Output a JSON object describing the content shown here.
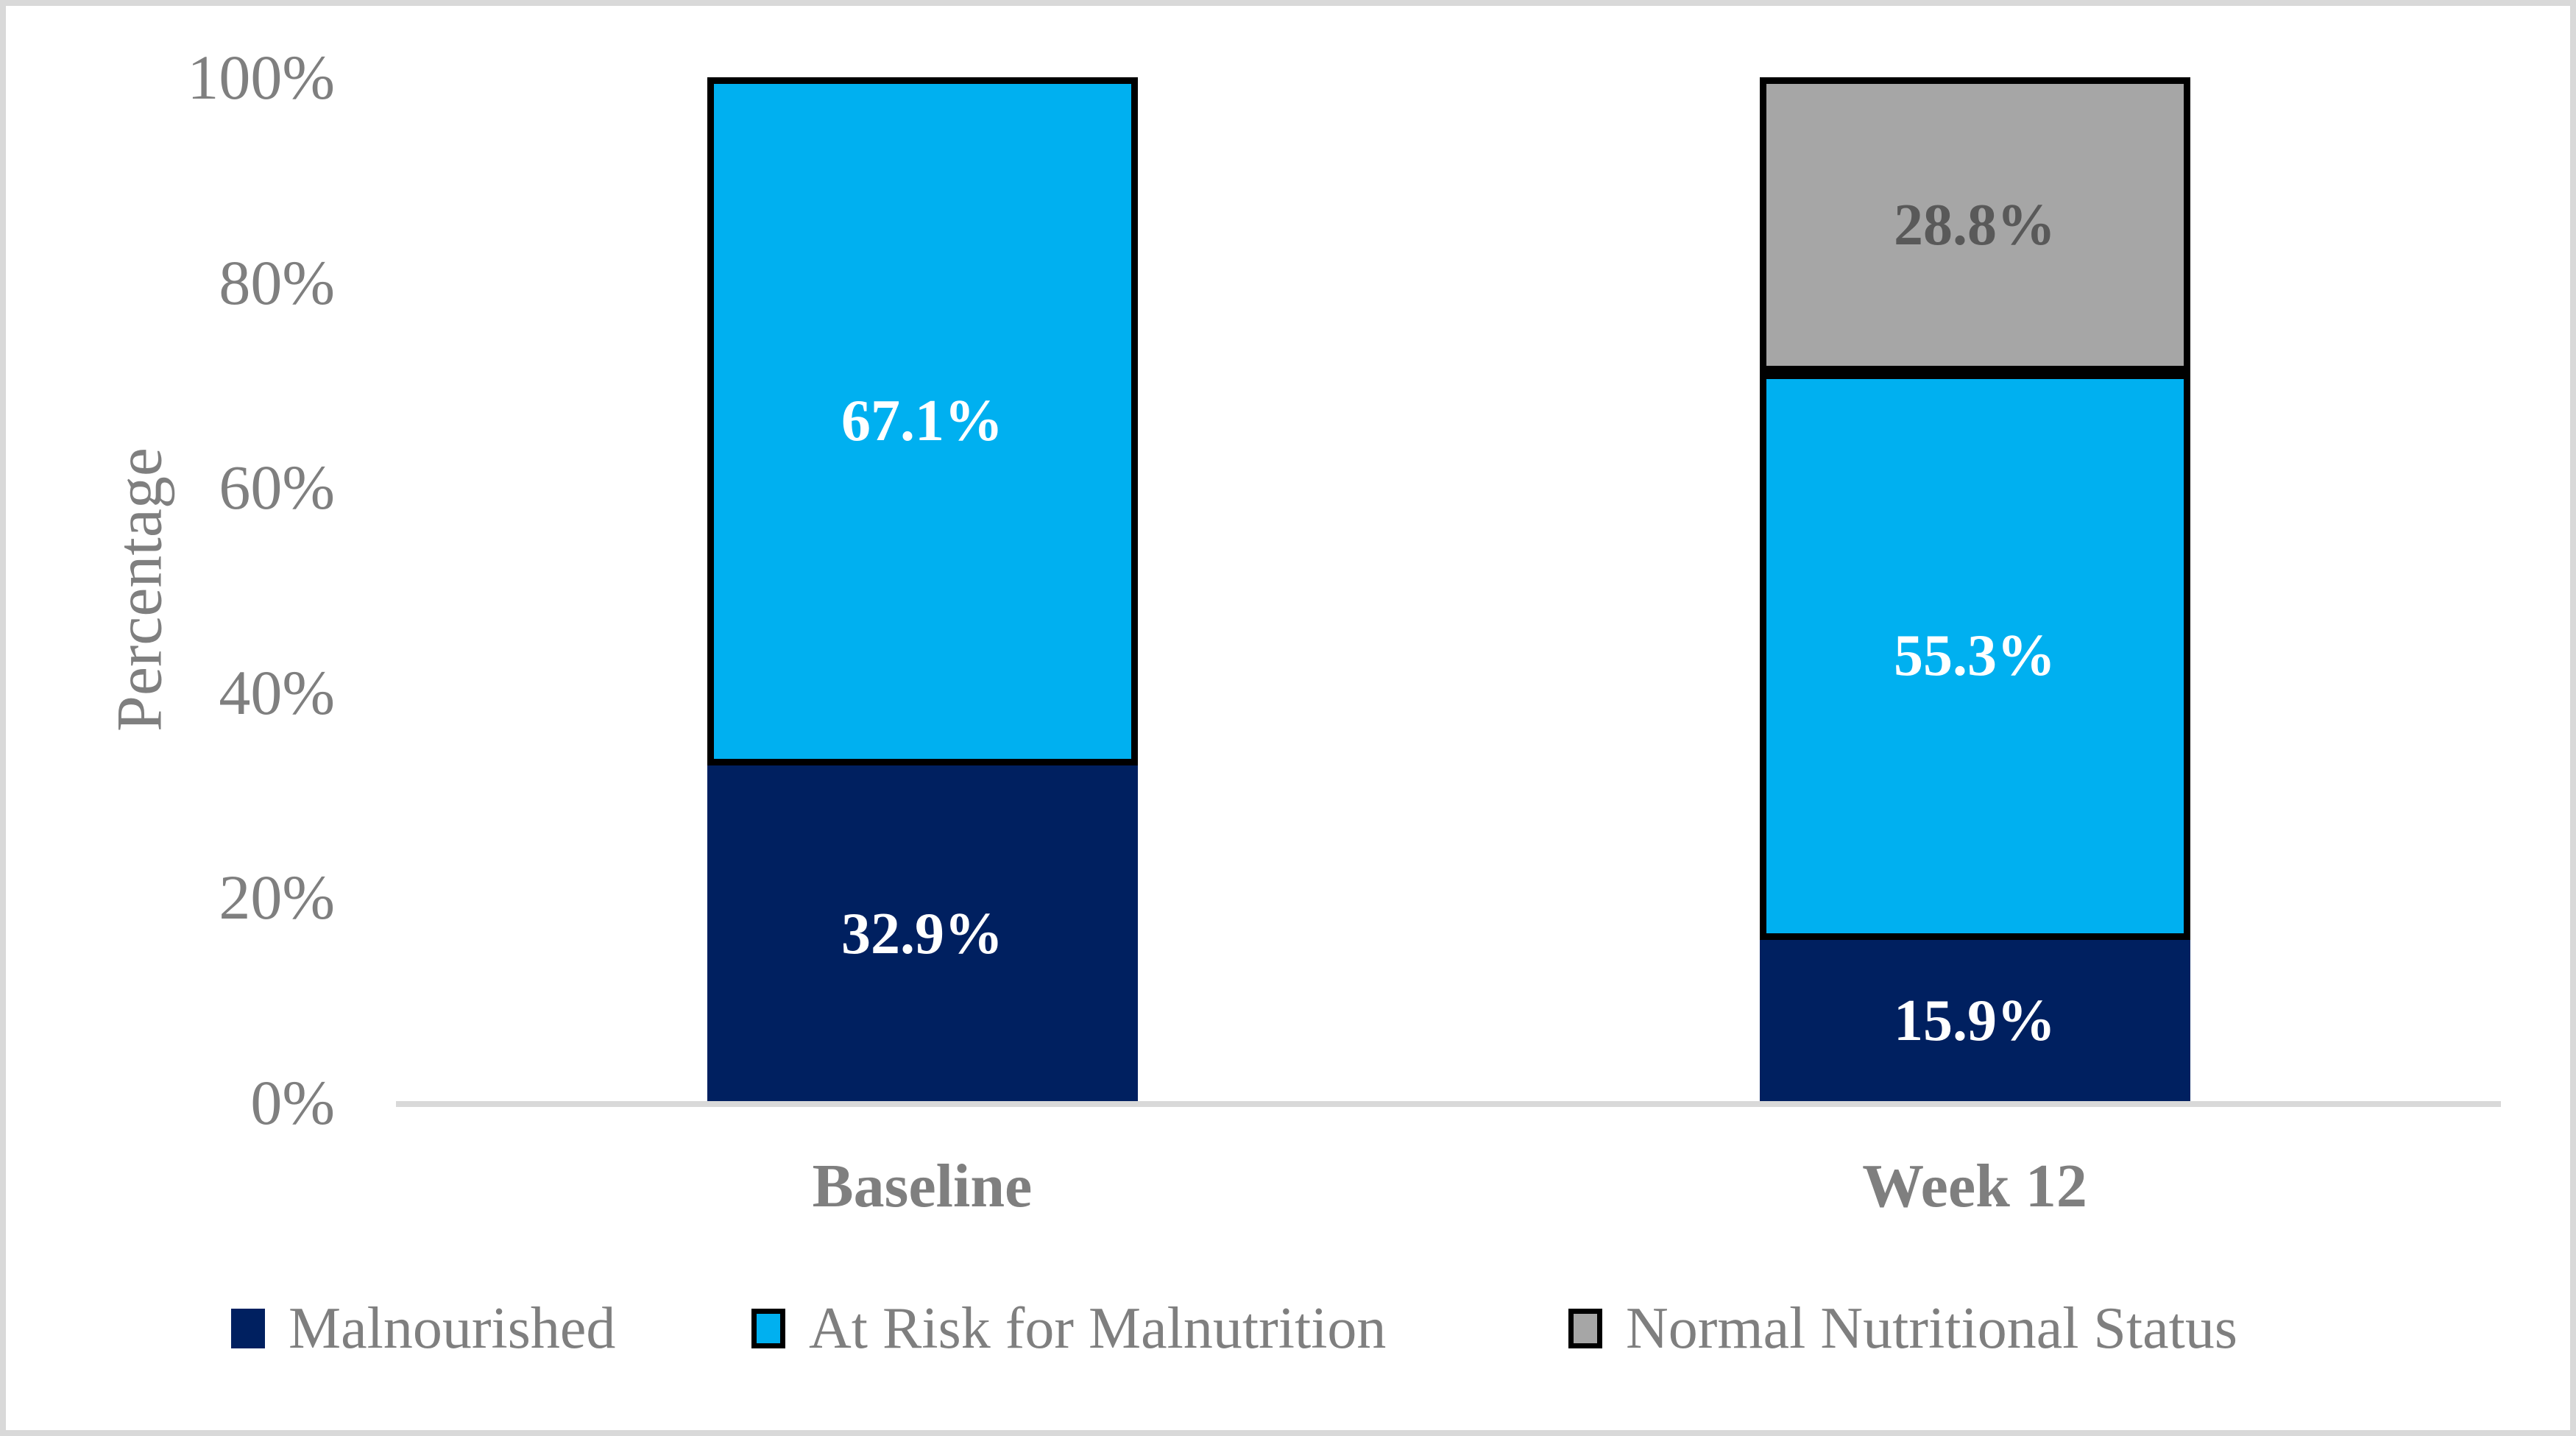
{
  "palette": {
    "figure_border": "#d9d9d9",
    "axis_line": "#d9d9d9",
    "axis_text": "#7f7f7f",
    "bar_outline": "#000000",
    "background": "#ffffff"
  },
  "chart_data": {
    "type": "bar",
    "stacked": true,
    "title": "",
    "xlabel": "",
    "ylabel": "Percentage",
    "ylim": [
      0,
      100
    ],
    "ytick_step": 20,
    "yticks": [
      "0%",
      "20%",
      "40%",
      "60%",
      "80%",
      "100%"
    ],
    "grid": false,
    "legend_position": "bottom",
    "categories": [
      "Baseline",
      "Week 12"
    ],
    "series": [
      {
        "name": "Malnourished",
        "values": [
          32.9,
          15.9
        ],
        "labels": [
          "32.9%",
          "15.9%"
        ],
        "color": "#002060",
        "outlined": false,
        "label_color": "#ffffff"
      },
      {
        "name": "At Risk for Malnutrition",
        "values": [
          67.1,
          55.3
        ],
        "labels": [
          "67.1%",
          "55.3%"
        ],
        "color": "#00b0f0",
        "outlined": true,
        "label_color": "#ffffff"
      },
      {
        "name": "Normal Nutritional Status",
        "values": [
          0,
          28.8
        ],
        "labels": [
          null,
          "28.8%"
        ],
        "color": "#a6a6a6",
        "outlined": true,
        "label_color": "#595959"
      }
    ]
  }
}
